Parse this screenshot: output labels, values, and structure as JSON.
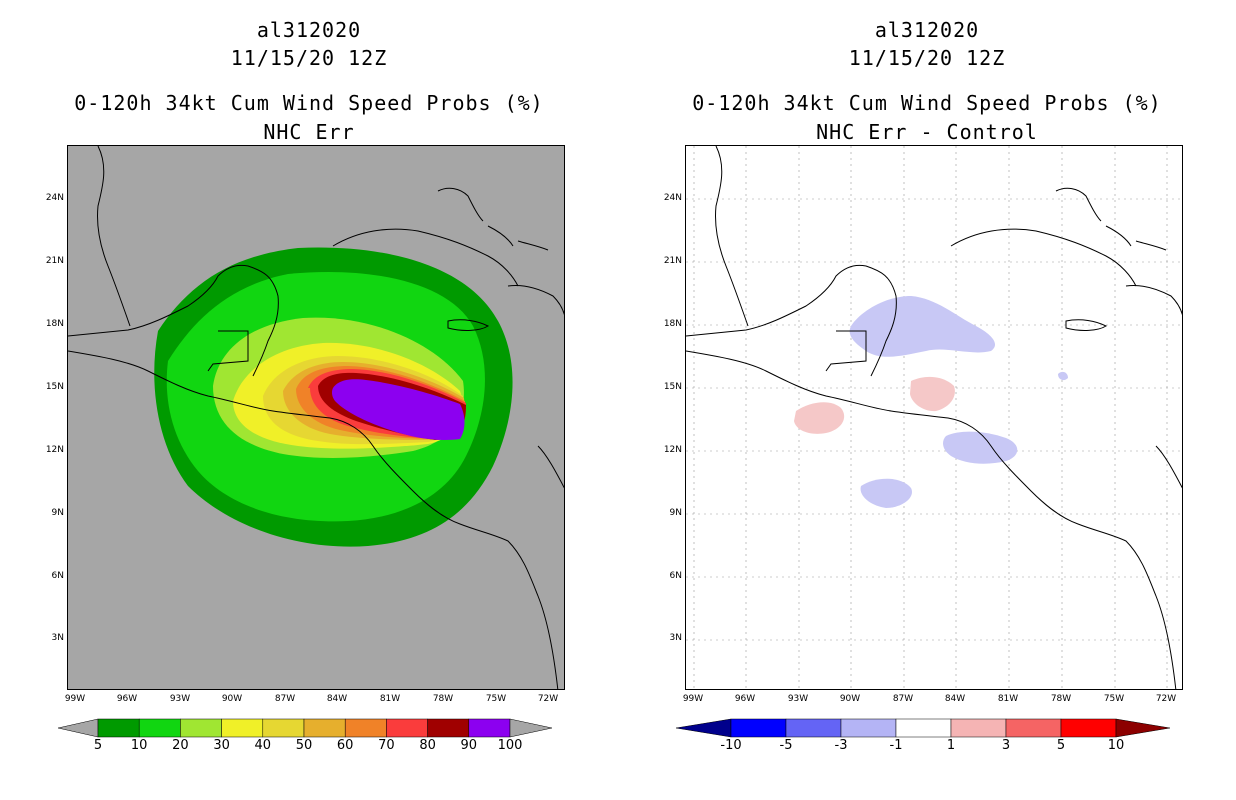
{
  "left": {
    "title_line1": "al312020",
    "title_line2": "11/15/20 12Z",
    "title_line3": "0-120h 34kt Cum Wind Speed Probs (%)",
    "title_line4": "NHC Err",
    "colorbar": {
      "labels": [
        "5",
        "10",
        "20",
        "30",
        "40",
        "50",
        "60",
        "70",
        "80",
        "90",
        "100"
      ],
      "colors": [
        "#009a00",
        "#11d611",
        "#a0e632",
        "#f0f028",
        "#e6d732",
        "#e6af2d",
        "#f08228",
        "#fa3c3c",
        "#a00000",
        "#8c00f0"
      ],
      "end_color": "#a6a6a6"
    }
  },
  "right": {
    "title_line1": "al312020",
    "title_line2": "11/15/20 12Z",
    "title_line3": "0-120h 34kt Cum Wind Speed Probs (%)",
    "title_line4": "NHC Err - Control",
    "colorbar": {
      "labels": [
        "-10",
        "-5",
        "-3",
        "-1",
        "1",
        "3",
        "5",
        "10"
      ],
      "colors": [
        "#0000ff",
        "#6464f5",
        "#b4b4f5",
        "#ffffff",
        "#f5b4b4",
        "#f56464",
        "#ff0000"
      ],
      "end_low": "#00008c",
      "end_high": "#8c0000"
    }
  },
  "axes": {
    "lat_labels": [
      "24N",
      "21N",
      "18N",
      "15N",
      "12N",
      "9N",
      "6N",
      "3N"
    ],
    "lon_labels": [
      "99W",
      "96W",
      "93W",
      "90W",
      "87W",
      "84W",
      "81W",
      "78W",
      "75W",
      "72W"
    ]
  }
}
